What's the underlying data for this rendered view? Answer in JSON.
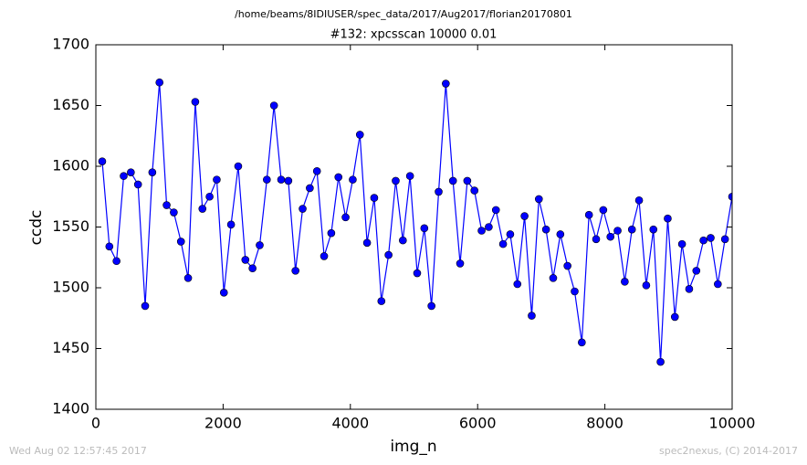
{
  "chart_data": {
    "type": "line",
    "suptitle": "/home/beams/8IDIUSER/spec_data/2017/Aug2017/florian20170801",
    "title": "#132: xpcsscan 10000 0.01",
    "xlabel": "img_n",
    "ylabel": "ccdc",
    "footer_left": "Wed Aug 02 12:57:45 2017",
    "footer_right": "spec2nexus, (C) 2014-2017",
    "color": "#0000ff",
    "marker": "circle",
    "grid": false,
    "xlim": [
      0,
      10000
    ],
    "xticks": [
      0,
      2000,
      4000,
      6000,
      8000,
      10000
    ],
    "ylim": [
      1400,
      1700
    ],
    "yticks": [
      1400,
      1450,
      1500,
      1550,
      1600,
      1650,
      1700
    ],
    "x": [
      100,
      212.5,
      325,
      437.5,
      550,
      662.5,
      775,
      887.5,
      1000,
      1112.5,
      1225,
      1337.5,
      1450,
      1562.5,
      1675,
      1787.5,
      1900,
      2012.5,
      2125,
      2237.5,
      2350,
      2462.5,
      2575,
      2687.5,
      2800,
      2912.5,
      3025,
      3137.5,
      3250,
      3362.5,
      3475,
      3587.5,
      3700,
      3812.5,
      3925,
      4037.5,
      4150,
      4262.5,
      4375,
      4487.5,
      4600,
      4712.5,
      4825,
      4937.5,
      5050,
      5162.5,
      5275,
      5387.5,
      5500,
      5612.5,
      5725,
      5837.5,
      5950,
      6062.5,
      6175,
      6287.5,
      6400,
      6512.5,
      6625,
      6737.5,
      6850,
      6962.5,
      7075,
      7187.5,
      7300,
      7412.5,
      7525,
      7637.5,
      7750,
      7862.5,
      7975,
      8087.5,
      8200,
      8312.5,
      8425,
      8537.5,
      8650,
      8762.5,
      8875,
      8987.5,
      9100,
      9212.5,
      9325,
      9437.5,
      9550,
      9662.5,
      9775,
      9887.5,
      10000
    ],
    "values": [
      1604,
      1534,
      1522,
      1592,
      1595,
      1585,
      1485,
      1595,
      1669,
      1568,
      1562,
      1538,
      1508,
      1653,
      1565,
      1575,
      1589,
      1496,
      1552,
      1600,
      1523,
      1516,
      1535,
      1589,
      1650,
      1589,
      1588,
      1514,
      1565,
      1582,
      1596,
      1526,
      1545,
      1591,
      1558,
      1589,
      1626,
      1537,
      1574,
      1489,
      1527,
      1588,
      1539,
      1592,
      1512,
      1549,
      1485,
      1579,
      1668,
      1588,
      1520,
      1588,
      1580,
      1547,
      1550,
      1564,
      1536,
      1544,
      1503,
      1559,
      1477,
      1573,
      1548,
      1508,
      1544,
      1518,
      1497,
      1455,
      1560,
      1540,
      1564,
      1542,
      1547,
      1505,
      1548,
      1572,
      1502,
      1548,
      1439,
      1557,
      1476,
      1536,
      1499,
      1514,
      1539,
      1541,
      1503,
      1540,
      1575
    ]
  }
}
